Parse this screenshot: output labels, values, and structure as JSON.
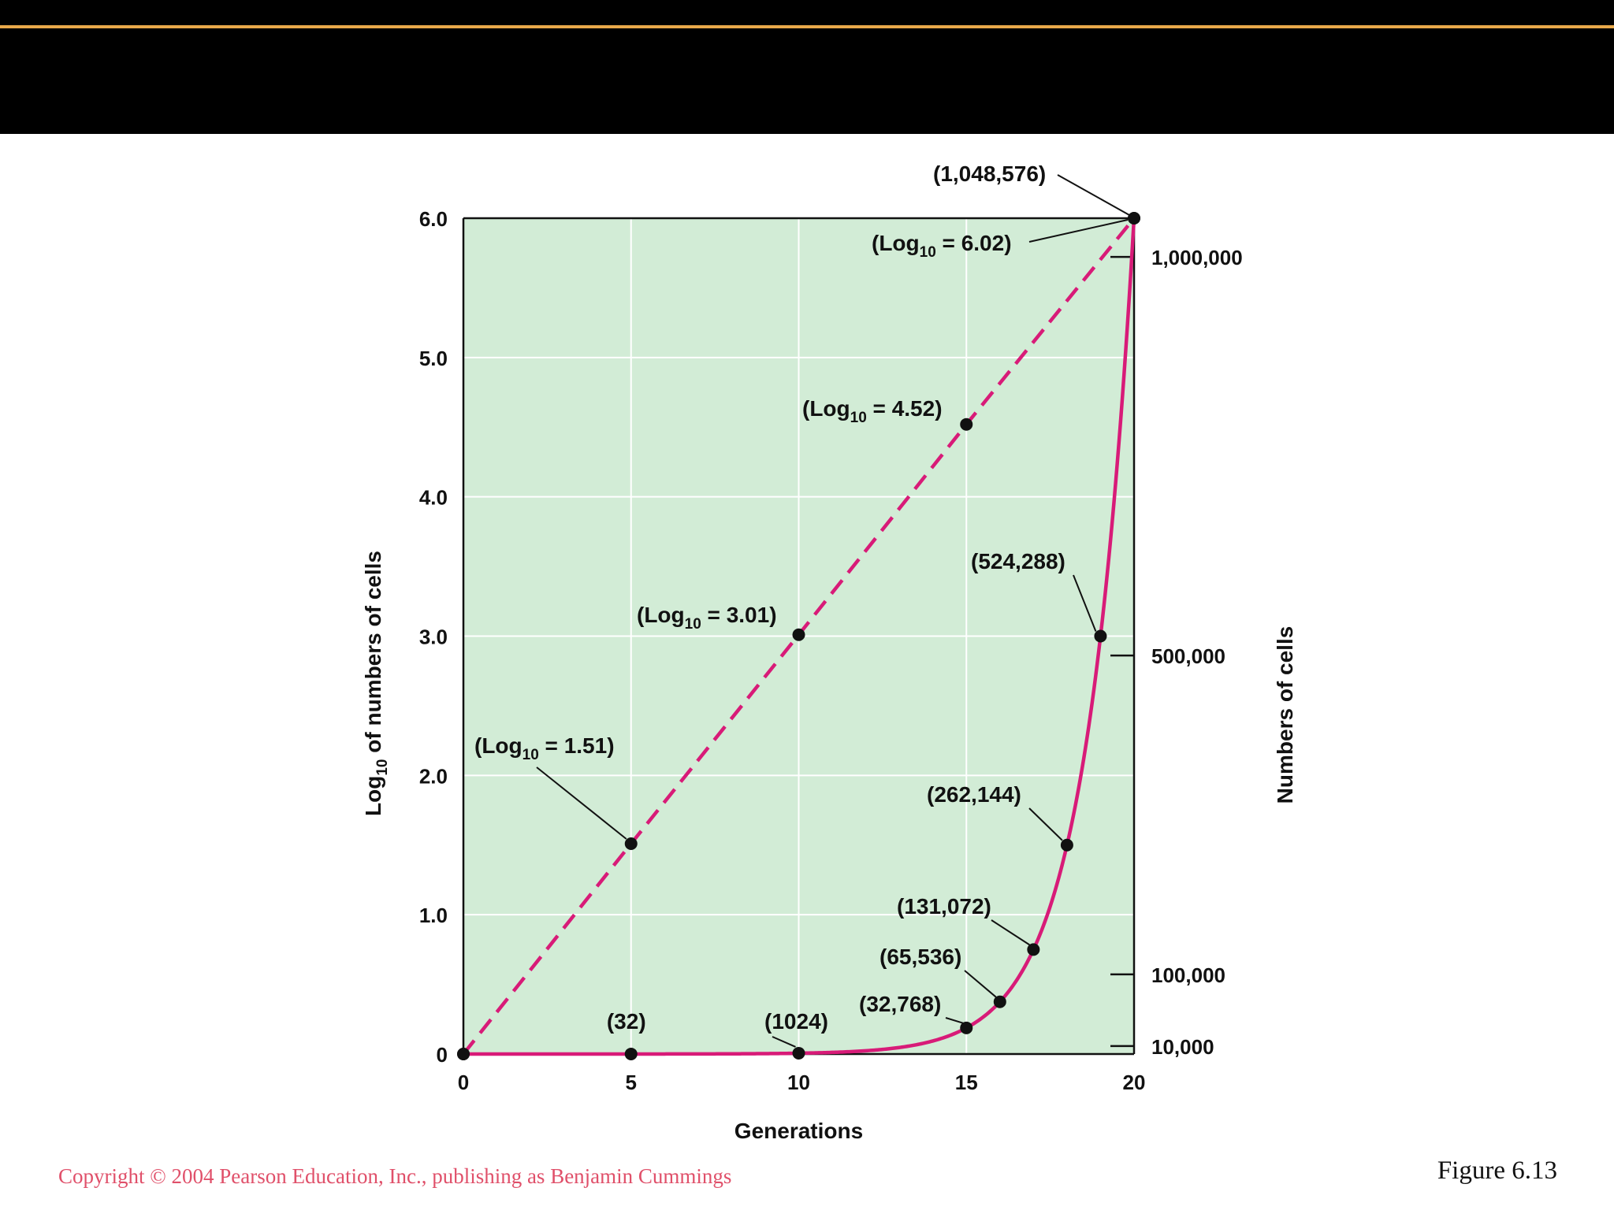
{
  "header": {
    "bar_color": "#000000",
    "accent_line_color": "#e8a84a"
  },
  "chart_data": {
    "type": "line",
    "xlabel": "Generations",
    "ylabel_left_prefix": "Log",
    "ylabel_left_sub": "10",
    "ylabel_left_suffix": " of numbers of cells",
    "ylabel_right": "Numbers of cells",
    "xlim": [
      0,
      20
    ],
    "ylim": [
      0,
      6.0
    ],
    "x_ticks": [
      "0",
      "5",
      "10",
      "15",
      "20"
    ],
    "y_ticks_left": [
      "0",
      "1.0",
      "2.0",
      "3.0",
      "4.0",
      "5.0",
      "6.0"
    ],
    "y_ticks_right": [
      {
        "label": "10,000",
        "value": 10000
      },
      {
        "label": "100,000",
        "value": 100000
      },
      {
        "label": "500,000",
        "value": 500000
      },
      {
        "label": "1,000,000",
        "value": 1000000
      }
    ],
    "right_axis_max": 1048576,
    "grid": true,
    "background_color": "#d2ecd6",
    "series": [
      {
        "style": "dashed",
        "color": "#d81b78",
        "axis": "left",
        "points": [
          {
            "x": 0,
            "y": 0,
            "label": ""
          },
          {
            "x": 5,
            "y": 1.51,
            "label": "1.51"
          },
          {
            "x": 10,
            "y": 3.01,
            "label": "3.01"
          },
          {
            "x": 15,
            "y": 4.52,
            "label": "4.52"
          },
          {
            "x": 20,
            "y": 6.02,
            "label": "6.02"
          }
        ]
      },
      {
        "style": "solid",
        "color": "#d81b78",
        "axis": "right",
        "points": [
          {
            "x": 0,
            "y": 1,
            "label": ""
          },
          {
            "x": 5,
            "y": 32,
            "label": "(32)"
          },
          {
            "x": 10,
            "y": 1024,
            "label": "(1024)"
          },
          {
            "x": 15,
            "y": 32768,
            "label": "(32,768)"
          },
          {
            "x": 16,
            "y": 65536,
            "label": "(65,536)"
          },
          {
            "x": 17,
            "y": 131072,
            "label": "(131,072)"
          },
          {
            "x": 18,
            "y": 262144,
            "label": "(262,144)"
          },
          {
            "x": 19,
            "y": 524288,
            "label": "(524,288)"
          },
          {
            "x": 20,
            "y": 1048576,
            "label": "(1,048,576)"
          }
        ]
      }
    ]
  },
  "footer": {
    "copyright": "Copyright © 2004 Pearson Education, Inc., publishing as Benjamin Cummings",
    "figure_label": "Figure 6.13"
  }
}
